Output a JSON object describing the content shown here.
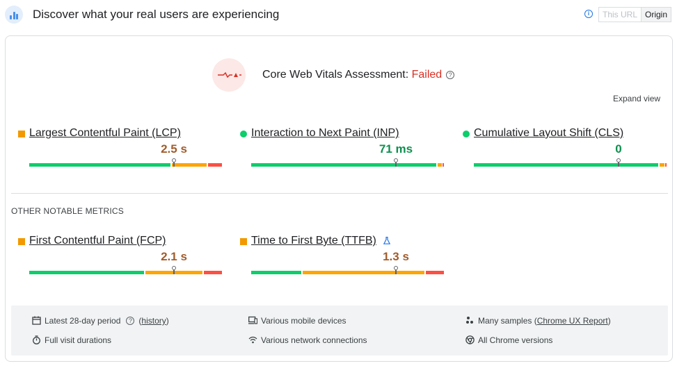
{
  "header": {
    "title": "Discover what your real users are experiencing",
    "toggle": {
      "this_url": "This URL",
      "origin": "Origin",
      "selected": "Origin"
    }
  },
  "assessment": {
    "label": "Core Web Vitals Assessment: ",
    "status": "Failed",
    "status_color": "#d93025",
    "expand": "Expand view"
  },
  "core_metrics": [
    {
      "name": "Largest Contentful Paint (LCP)",
      "value": "2.5 s",
      "rating": "needs-improvement",
      "distribution": {
        "good": 0.74,
        "needs_improvement": 0.18,
        "poor": 0.08
      },
      "marker": 0.75
    },
    {
      "name": "Interaction to Next Paint (INP)",
      "value": "71 ms",
      "rating": "good",
      "distribution": {
        "good": 0.97,
        "needs_improvement": 0.02,
        "poor": 0.01
      },
      "marker": 0.75
    },
    {
      "name": "Cumulative Layout Shift (CLS)",
      "value": "0",
      "rating": "good",
      "distribution": {
        "good": 0.97,
        "needs_improvement": 0.02,
        "poor": 0.01
      },
      "marker": 0.75
    }
  ],
  "other_metrics": {
    "heading": "OTHER NOTABLE METRICS",
    "items": [
      {
        "name": "First Contentful Paint (FCP)",
        "value": "2.1 s",
        "rating": "needs-improvement",
        "distribution": {
          "good": 0.6,
          "needs_improvement": 0.3,
          "poor": 0.1
        },
        "marker": 0.75
      },
      {
        "name": "Time to First Byte (TTFB)",
        "value": "1.3 s",
        "rating": "needs-improvement",
        "distribution": {
          "good": 0.27,
          "needs_improvement": 0.63,
          "poor": 0.1
        },
        "marker": 0.75,
        "experimental_icon": "flask-icon"
      }
    ]
  },
  "footer": {
    "period": "Latest 28-day period",
    "history_link": "history",
    "devices": "Various mobile devices",
    "samples_prefix": "Many samples (",
    "samples_link": "Chrome UX Report",
    "samples_suffix": ")",
    "visit": "Full visit durations",
    "network": "Various network connections",
    "chrome": "All Chrome versions"
  },
  "colors": {
    "good": "#0cce6b",
    "needs_improvement": "#ffa400",
    "poor": "#ff4e42",
    "good_text": "#0d904f",
    "ni_text": "#a15c2b"
  }
}
